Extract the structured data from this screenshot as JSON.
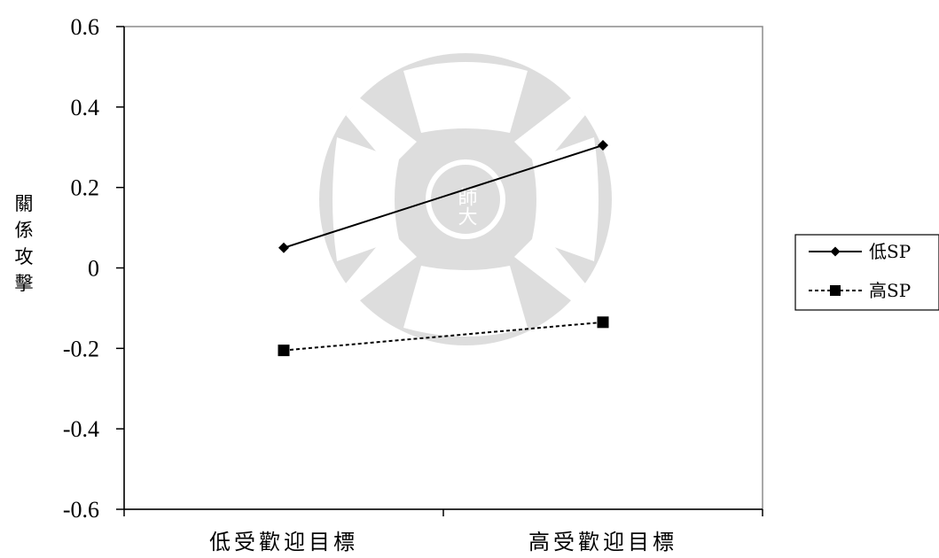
{
  "chart_data": {
    "type": "line",
    "categories": [
      "低受歡迎目標",
      "高受歡迎目標"
    ],
    "series": [
      {
        "name": "低SP",
        "values": [
          0.05,
          0.305
        ],
        "line_style": "solid",
        "marker": "diamond",
        "color": "#000000"
      },
      {
        "name": "高SP",
        "values": [
          -0.205,
          -0.135
        ],
        "line_style": "dashed",
        "marker": "square",
        "color": "#000000"
      }
    ],
    "ylabel": "關係攻擊",
    "xlabel": "",
    "ylim": [
      -0.6,
      0.6
    ],
    "yticks": [
      0.6,
      0.4,
      0.2,
      0,
      -0.2,
      -0.4,
      -0.6
    ],
    "ytick_labels": [
      "0.6",
      "0.4",
      "0.2",
      "0",
      "-0.2",
      "-0.4",
      "-0.6"
    ],
    "grid": false,
    "legend_position": "right",
    "watermark_text": "師大"
  }
}
